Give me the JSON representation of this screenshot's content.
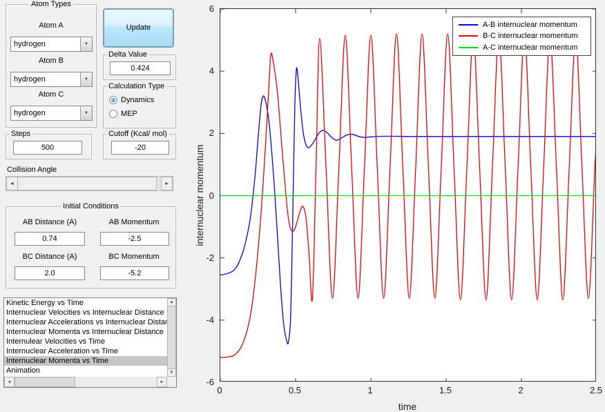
{
  "left_panel": {
    "atom_types": {
      "title": "Atom Types",
      "atoms": [
        {
          "label": "Atom A",
          "value": "hydrogen"
        },
        {
          "label": "Atom B",
          "value": "hydrogen"
        },
        {
          "label": "Atom C",
          "value": "hydrogen"
        }
      ]
    },
    "update_button_label": "Update",
    "delta": {
      "title": "Delta Value",
      "value": "0.424"
    },
    "calculation_type": {
      "title": "Calculation Type",
      "options": [
        {
          "label": "Dynamics",
          "selected": true
        },
        {
          "label": "MEP",
          "selected": false
        }
      ]
    },
    "steps": {
      "title": "Steps",
      "value": "500"
    },
    "cutoff": {
      "title": "Cutoff (Kcal/ mol)",
      "value": "-20"
    },
    "collision_angle": {
      "label": "Collision Angle"
    },
    "initial_conditions": {
      "title": "Initial Conditions",
      "fields": [
        {
          "label": "AB Distance (A)",
          "value": "0.74"
        },
        {
          "label": "AB Momentum",
          "value": "-2.5"
        },
        {
          "label": "BC Distance (A)",
          "value": "2.0"
        },
        {
          "label": "BC Momentum",
          "value": "-5.2"
        }
      ]
    },
    "plot_list": {
      "items": [
        "Kinetic Energy vs Time",
        "Internuclear Velocities vs Internuclear Distance",
        "Internuclear Accelerations vs Internuclear Distance",
        "Internuclear Momenta vs Internuclear Distance",
        "Internulear Velocities vs Time",
        "Internuclear Acceleration vs Time",
        "Internuclear Momenta vs Time",
        "Animation"
      ],
      "selected_index": 6
    }
  },
  "chart_data": {
    "type": "line",
    "xlabel": "time",
    "ylabel": "internuclear momentum",
    "xlim": [
      0,
      2.5
    ],
    "ylim": [
      -6,
      6
    ],
    "xticks": [
      0,
      0.5,
      1,
      1.5,
      2,
      2.5
    ],
    "yticks": [
      -6,
      -4,
      -2,
      0,
      2,
      4,
      6
    ],
    "grid": false,
    "legend_position": "top-right",
    "series": [
      {
        "name": "A-B internuclear momentum",
        "color": "#0000ee",
        "points": [
          [
            0,
            -2.55
          ],
          [
            0.05,
            -2.5
          ],
          [
            0.1,
            -2.35
          ],
          [
            0.14,
            -1.95
          ],
          [
            0.17,
            -1.45
          ],
          [
            0.2,
            -0.7
          ],
          [
            0.23,
            0.6
          ],
          [
            0.25,
            1.8
          ],
          [
            0.27,
            2.9
          ],
          [
            0.285,
            3.2
          ],
          [
            0.3,
            3.05
          ],
          [
            0.32,
            2.5
          ],
          [
            0.34,
            1.5
          ],
          [
            0.36,
            0.2
          ],
          [
            0.38,
            -1.3
          ],
          [
            0.4,
            -2.9
          ],
          [
            0.42,
            -4.1
          ],
          [
            0.44,
            -4.65
          ],
          [
            0.452,
            -4.72
          ],
          [
            0.465,
            -4.1
          ],
          [
            0.475,
            -2.3
          ],
          [
            0.485,
            0.4
          ],
          [
            0.495,
            2.9
          ],
          [
            0.505,
            4.05
          ],
          [
            0.515,
            3.85
          ],
          [
            0.53,
            3.0
          ],
          [
            0.55,
            2.05
          ],
          [
            0.57,
            1.62
          ],
          [
            0.59,
            1.55
          ],
          [
            0.62,
            1.72
          ],
          [
            0.65,
            1.98
          ],
          [
            0.68,
            2.1
          ],
          [
            0.71,
            2.02
          ],
          [
            0.74,
            1.87
          ],
          [
            0.77,
            1.78
          ],
          [
            0.8,
            1.84
          ],
          [
            0.84,
            1.95
          ],
          [
            0.88,
            1.97
          ],
          [
            0.92,
            1.9
          ],
          [
            0.96,
            1.87
          ],
          [
            1,
            1.89
          ],
          [
            1.1,
            1.91
          ],
          [
            1.3,
            1.9
          ],
          [
            1.6,
            1.9
          ],
          [
            2,
            1.9
          ],
          [
            2.5,
            1.9
          ]
        ]
      },
      {
        "name": "B-C internuclear momentum",
        "color": "#ee0000",
        "points": [
          [
            0,
            -5.2
          ],
          [
            0.06,
            -5.18
          ],
          [
            0.1,
            -5.1
          ],
          [
            0.14,
            -4.85
          ],
          [
            0.18,
            -4.3
          ],
          [
            0.21,
            -3.55
          ],
          [
            0.24,
            -2.3
          ],
          [
            0.27,
            -0.6
          ],
          [
            0.3,
            1.6
          ],
          [
            0.32,
            3.3
          ],
          [
            0.335,
            4.5
          ],
          [
            0.35,
            4.35
          ],
          [
            0.38,
            3.3
          ],
          [
            0.41,
            1.5
          ],
          [
            0.44,
            -0.2
          ],
          [
            0.46,
            -0.95
          ],
          [
            0.48,
            -1.15
          ],
          [
            0.5,
            -1.0
          ],
          [
            0.53,
            -0.5
          ],
          [
            0.55,
            -0.35
          ],
          [
            0.57,
            -0.75
          ],
          [
            0.59,
            -1.9
          ],
          [
            0.612,
            -3.3
          ],
          [
            0.636,
            0.9
          ],
          [
            0.66,
            5.05
          ],
          [
            0.7025,
            0.9
          ],
          [
            0.745,
            -3.3
          ],
          [
            0.7875,
            0.9
          ],
          [
            0.83,
            5.15
          ],
          [
            0.8725,
            0.9
          ],
          [
            0.915,
            -3.3
          ],
          [
            0.9575,
            0.9
          ],
          [
            1.0,
            5.15
          ],
          [
            1.0425,
            0.9
          ],
          [
            1.085,
            -3.3
          ],
          [
            1.1275,
            0.9
          ],
          [
            1.17,
            5.2
          ],
          [
            1.2125,
            0.9
          ],
          [
            1.255,
            -3.3
          ],
          [
            1.2975,
            0.9
          ],
          [
            1.34,
            5.2
          ],
          [
            1.3825,
            0.9
          ],
          [
            1.425,
            -3.3
          ],
          [
            1.4675,
            0.9
          ],
          [
            1.51,
            5.2
          ],
          [
            1.5525,
            0.9
          ],
          [
            1.595,
            -3.35
          ],
          [
            1.6375,
            0.9
          ],
          [
            1.68,
            5.15
          ],
          [
            1.7225,
            0.9
          ],
          [
            1.765,
            -3.35
          ],
          [
            1.8075,
            0.9
          ],
          [
            1.85,
            5.15
          ],
          [
            1.8925,
            0.9
          ],
          [
            1.935,
            -3.35
          ],
          [
            1.9775,
            0.9
          ],
          [
            2.02,
            5.15
          ],
          [
            2.0625,
            0.9
          ],
          [
            2.105,
            -3.35
          ],
          [
            2.1475,
            0.9
          ],
          [
            2.19,
            5.1
          ],
          [
            2.2325,
            0.9
          ],
          [
            2.275,
            -3.35
          ],
          [
            2.3175,
            0.9
          ],
          [
            2.36,
            5.1
          ],
          [
            2.4025,
            0.9
          ],
          [
            2.445,
            -3.3
          ],
          [
            2.4875,
            0.9
          ],
          [
            2.5,
            1.8
          ]
        ]
      },
      {
        "name": "A-C internuclear momentum",
        "color": "#00dd00",
        "points": [
          [
            0,
            0
          ],
          [
            2.5,
            0
          ]
        ]
      }
    ]
  }
}
